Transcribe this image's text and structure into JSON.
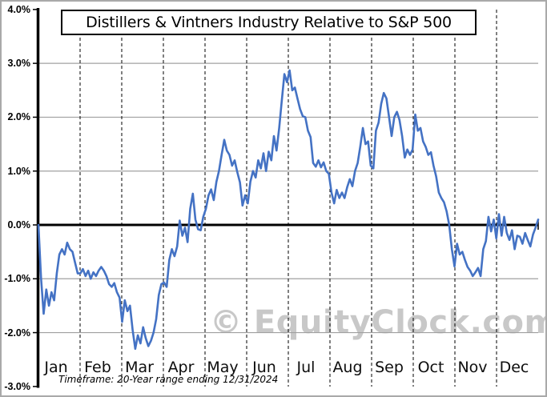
{
  "title": "Distillers & Vintners Industry Relative to S&P 500",
  "watermark": {
    "text": "© EquityClock.com",
    "color": "#c8c8c8"
  },
  "caption": {
    "text": "Timeframe: 20-Year range ending 12/31/2024"
  },
  "colors": {
    "line": "#4472c4",
    "gridline": "#a0a0a0",
    "axis": "#000000",
    "month_gridline": "#000000",
    "outer_border": "#a9a9a9",
    "background": "#ffffff"
  },
  "chart_data": {
    "type": "line",
    "title": "Distillers & Vintners Industry Relative to S&P 500",
    "xlabel": "",
    "ylabel": "",
    "ylim": [
      -3.0,
      4.0
    ],
    "grid": {
      "horizontal": "solid gray at each 1%",
      "vertical": "dashed black at month boundaries",
      "zero_line": "thick black"
    },
    "legend_position": "none",
    "x_categories": [
      "Jan",
      "Feb",
      "Mar",
      "Apr",
      "May",
      "Jun",
      "Jul",
      "Aug",
      "Sep",
      "Oct",
      "Nov",
      "Dec"
    ],
    "y_ticks": [
      {
        "label": "4.0%",
        "value": 4.0,
        "gridline": false
      },
      {
        "label": "3.0%",
        "value": 3.0,
        "gridline": true
      },
      {
        "label": "2.0%",
        "value": 2.0,
        "gridline": true
      },
      {
        "label": "1.0%",
        "value": 1.0,
        "gridline": true
      },
      {
        "label": "0.0%",
        "value": 0.0,
        "gridline": false
      },
      {
        "label": "-1.0%",
        "value": -1.0,
        "gridline": true
      },
      {
        "label": "-2.0%",
        "value": -2.0,
        "gridline": true
      },
      {
        "label": "-3.0%",
        "value": -3.0,
        "gridline": false
      }
    ],
    "series": [
      {
        "name": "Distillers & Vintners Industry Relative to S&P 500 (%)",
        "color": "#4472c4",
        "points_per_month": 16,
        "values": [
          0.0,
          -1.0,
          -1.65,
          -1.2,
          -1.5,
          -1.25,
          -1.4,
          -0.9,
          -0.55,
          -0.45,
          -0.55,
          -0.33,
          -0.45,
          -0.5,
          -0.7,
          -0.9,
          -0.9,
          -0.82,
          -0.95,
          -0.85,
          -1.0,
          -0.88,
          -0.95,
          -0.85,
          -0.78,
          -0.85,
          -0.95,
          -1.1,
          -1.15,
          -1.08,
          -1.25,
          -1.35,
          -1.8,
          -1.4,
          -1.6,
          -1.5,
          -1.95,
          -2.3,
          -2.05,
          -2.2,
          -1.9,
          -2.1,
          -2.25,
          -2.15,
          -2.0,
          -1.75,
          -1.3,
          -1.1,
          -1.07,
          -1.15,
          -0.65,
          -0.45,
          -0.58,
          -0.4,
          0.08,
          -0.2,
          -0.05,
          -0.32,
          0.3,
          0.58,
          0.1,
          -0.08,
          -0.1,
          0.15,
          0.3,
          0.55,
          0.66,
          0.46,
          0.8,
          1.0,
          1.3,
          1.58,
          1.38,
          1.3,
          1.1,
          1.2,
          0.98,
          0.79,
          0.36,
          0.55,
          0.4,
          0.8,
          1.0,
          0.88,
          1.2,
          1.05,
          1.33,
          1.0,
          1.36,
          1.2,
          1.65,
          1.38,
          1.8,
          2.3,
          2.8,
          2.65,
          2.87,
          2.5,
          2.55,
          2.35,
          2.15,
          2.02,
          2.0,
          1.75,
          1.63,
          1.15,
          1.08,
          1.2,
          1.07,
          1.16,
          1.0,
          0.95,
          0.6,
          0.4,
          0.65,
          0.5,
          0.6,
          0.5,
          0.7,
          0.85,
          0.72,
          1.0,
          1.15,
          1.45,
          1.8,
          1.5,
          1.55,
          1.1,
          1.05,
          1.75,
          1.9,
          2.25,
          2.45,
          2.35,
          2.0,
          1.65,
          2.0,
          2.1,
          1.95,
          1.65,
          1.25,
          1.4,
          1.3,
          1.4,
          2.05,
          1.75,
          1.8,
          1.55,
          1.45,
          1.3,
          1.35,
          1.1,
          0.9,
          0.6,
          0.5,
          0.42,
          0.25,
          0.0,
          -0.45,
          -0.77,
          -0.35,
          -0.55,
          -0.5,
          -0.65,
          -0.78,
          -0.85,
          -0.95,
          -0.88,
          -0.8,
          -0.95,
          -0.45,
          -0.3,
          0.15,
          -0.12,
          0.1,
          -0.25,
          0.2,
          -0.2,
          0.15,
          -0.15,
          -0.28,
          -0.1,
          -0.45,
          -0.2,
          -0.22,
          -0.35,
          -0.15,
          -0.28,
          -0.4,
          -0.18,
          -0.05,
          0.1
        ]
      }
    ]
  }
}
